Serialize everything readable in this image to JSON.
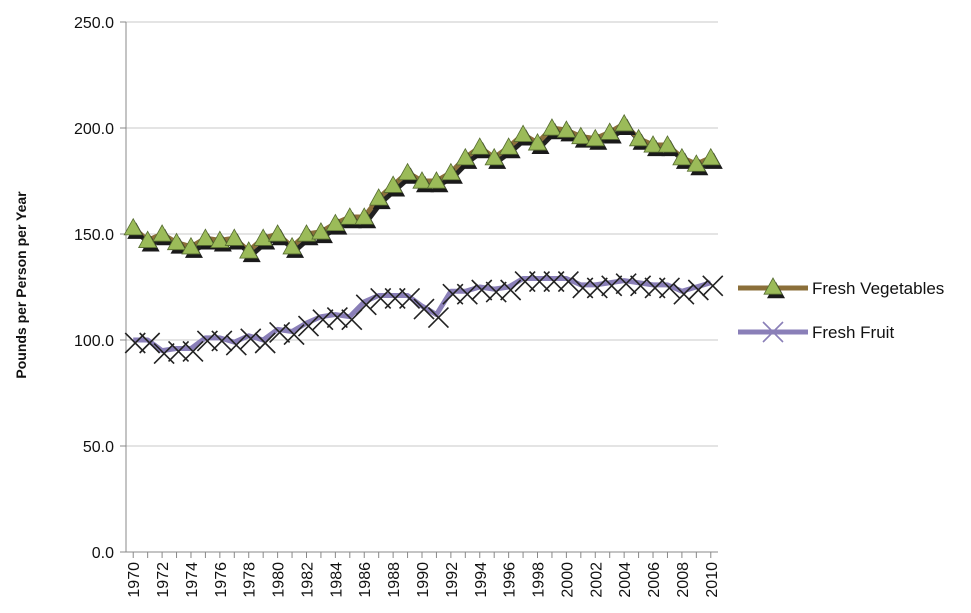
{
  "chart_data": {
    "type": "line",
    "title": "",
    "xlabel": "",
    "ylabel": "Pounds per Person per Year",
    "ylim": [
      0,
      250
    ],
    "y_ticks": [
      "0.0",
      "50.0",
      "100.0",
      "150.0",
      "200.0",
      "250.0"
    ],
    "x_tick_labels": [
      "1970",
      "1972",
      "1974",
      "1976",
      "1978",
      "1980",
      "1982",
      "1984",
      "1986",
      "1988",
      "1990",
      "1992",
      "1994",
      "1996",
      "1998",
      "2000",
      "2002",
      "2004",
      "2006",
      "2008",
      "2010"
    ],
    "grid": true,
    "legend_position": "right",
    "x": [
      1970,
      1971,
      1972,
      1973,
      1974,
      1975,
      1976,
      1977,
      1978,
      1979,
      1980,
      1981,
      1982,
      1983,
      1984,
      1985,
      1986,
      1987,
      1988,
      1989,
      1990,
      1991,
      1992,
      1993,
      1994,
      1995,
      1996,
      1997,
      1998,
      1999,
      2000,
      2001,
      2002,
      2003,
      2004,
      2005,
      2006,
      2007,
      2008,
      2009,
      2010
    ],
    "series": [
      {
        "name": "Fresh Vegetables",
        "color": "#8B6F3A",
        "marker_color": "#9BBB59",
        "marker": "triangle",
        "values": [
          153,
          147,
          150,
          146,
          144,
          148,
          147,
          148,
          142,
          148,
          150,
          144,
          150,
          151,
          155,
          158,
          158,
          167,
          173,
          179,
          175,
          175,
          179,
          186,
          191,
          186,
          191,
          197,
          193,
          200,
          199,
          196,
          195,
          198,
          202,
          195,
          192,
          192,
          186,
          183,
          186
        ]
      },
      {
        "name": "Fresh Fruit",
        "color": "#8A7FB8",
        "marker_color": "#222222",
        "marker": "x",
        "values": [
          100,
          100,
          95,
          96,
          96,
          101,
          101,
          99,
          102,
          100,
          105,
          104,
          108,
          111,
          112,
          111,
          118,
          121,
          121,
          121,
          116,
          112,
          123,
          123,
          125,
          124,
          125,
          129,
          129,
          129,
          129,
          126,
          126,
          127,
          128,
          127,
          126,
          126,
          123,
          125,
          127
        ]
      }
    ]
  }
}
